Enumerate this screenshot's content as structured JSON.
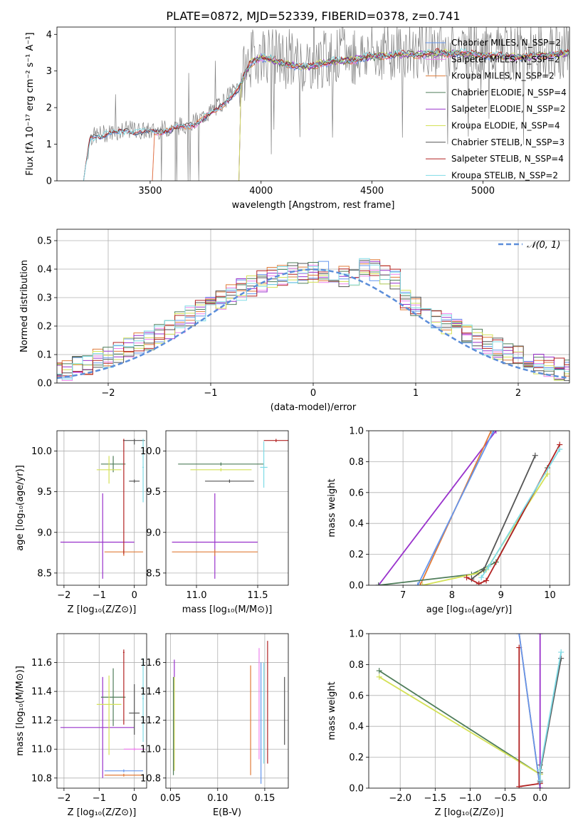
{
  "title": "PLATE=0872, MJD=52339, FIBERID=0378, z=0.741",
  "colors": {
    "chabrier_miles": "#6495ed",
    "salpeter_miles": "#ee82ee",
    "kroupa_miles": "#e07b39",
    "chabrier_elodie": "#4f7d5a",
    "salpeter_elodie": "#9932cc",
    "kroupa_elodie": "#d4e157",
    "chabrier_stelib": "#555555",
    "salpeter_stelib": "#b22222",
    "kroupa_stelib": "#7fdbe6",
    "data": "#808080",
    "normal": "#5b8dd9"
  },
  "chart_data": [
    {
      "id": "spectrum",
      "type": "line",
      "xlabel": "wavelength [Angstrom, rest frame]",
      "ylabel": "Flux [fλ 10⁻¹⁷ erg cm⁻² s⁻¹ A⁻¹]",
      "xlim": [
        3080,
        5390
      ],
      "ylim": [
        0,
        4.2
      ],
      "xticks": [
        3500,
        4000,
        4500,
        5000
      ],
      "yticks": [
        0,
        1,
        2,
        3,
        4
      ],
      "grid": false,
      "legend_position": "top-right",
      "continuum_x": [
        3200,
        3230,
        3300,
        3400,
        3500,
        3600,
        3700,
        3800,
        3850,
        3900,
        3950,
        4000,
        4100,
        4200,
        4300,
        4400,
        4500,
        4600,
        4700,
        4800,
        4900,
        5000,
        5100,
        5200,
        5300,
        5390
      ],
      "continuum_y": [
        0,
        1.2,
        1.3,
        1.4,
        1.35,
        1.45,
        1.6,
        2.0,
        2.3,
        2.6,
        3.3,
        3.5,
        3.3,
        3.2,
        3.35,
        3.4,
        3.5,
        3.55,
        3.55,
        3.6,
        3.6,
        3.55,
        3.5,
        3.5,
        3.55,
        3.6
      ],
      "series": [
        {
          "name": "Chabrier MILES, N_SSP=2",
          "color_key": "chabrier_miles",
          "start": 3210
        },
        {
          "name": "Salpeter MILES, N_SSP=2",
          "color_key": "salpeter_miles",
          "start": 3520
        },
        {
          "name": "Kroupa MILES, N_SSP=2",
          "color_key": "kroupa_miles",
          "start": 3520
        },
        {
          "name": "Chabrier ELODIE, N_SSP=4",
          "color_key": "chabrier_elodie",
          "start": 3910
        },
        {
          "name": "Salpeter ELODIE, N_SSP=2",
          "color_key": "salpeter_elodie",
          "start": 3910
        },
        {
          "name": "Kroupa ELODIE, N_SSP=4",
          "color_key": "kroupa_elodie",
          "start": 3910
        },
        {
          "name": "Chabrier STELIB, N_SSP=3",
          "color_key": "chabrier_stelib",
          "start": 3210
        },
        {
          "name": "Salpeter STELIB, N_SSP=4",
          "color_key": "salpeter_stelib",
          "start": 3210
        },
        {
          "name": "Kroupa STELIB, N_SSP=2",
          "color_key": "kroupa_stelib",
          "start": 3210
        }
      ]
    },
    {
      "id": "residuals",
      "type": "line",
      "xlabel": "(data-model)/error",
      "ylabel": "Normed distribution",
      "xlim": [
        -2.5,
        2.5
      ],
      "ylim": [
        0,
        0.54
      ],
      "xticks": [
        -2,
        -1,
        0,
        1,
        2
      ],
      "yticks": [
        0.0,
        0.1,
        0.2,
        0.3,
        0.4,
        0.5
      ],
      "grid": true,
      "legend_position": "top-right",
      "legend_label": "𝒩(0, 1)",
      "bin_width": 0.1
    },
    {
      "id": "age_vs_Z",
      "type": "scatter",
      "xlabel": "Z [log₁₀(Z/Z⊙)]",
      "ylabel": "age  [log₁₀(age/yr)]",
      "xlim": [
        -2.2,
        0.35
      ],
      "ylim": [
        8.35,
        10.25
      ],
      "xticks": [
        -2,
        -1,
        0
      ],
      "yticks": [
        8.5,
        9.0,
        9.5,
        10.0
      ],
      "grid": true,
      "points": [
        {
          "color_key": "salpeter_elodie",
          "x": -0.9,
          "xerr": [
            1.2,
            0.9
          ],
          "y": 8.88,
          "yerr": [
            0.45,
            0.6
          ]
        },
        {
          "color_key": "kroupa_miles",
          "x": -0.3,
          "xerr": [
            0.55,
            0.55
          ],
          "y": 8.76,
          "yerr": [
            0.05,
            0.03
          ]
        },
        {
          "color_key": "chabrier_elodie",
          "x": -0.6,
          "xerr": [
            0.35,
            0.35
          ],
          "y": 9.84,
          "yerr": [
            0.1,
            0.1
          ]
        },
        {
          "color_key": "kroupa_elodie",
          "x": -0.72,
          "xerr": [
            0.35,
            0.35
          ],
          "y": 9.77,
          "yerr": [
            0.17,
            0.17
          ]
        },
        {
          "color_key": "salpeter_stelib",
          "x": -0.3,
          "xerr": [
            0.02,
            0.02
          ],
          "y": 10.13,
          "yerr": [
            1.4,
            0.02
          ]
        },
        {
          "color_key": "chabrier_stelib",
          "x": 0.0,
          "xerr": [
            0.3,
            0.3
          ],
          "y": 10.13,
          "yerr": [
            0.05,
            0.02
          ]
        },
        {
          "color_key": "chabrier_stelib",
          "x": 0.0,
          "xerr": [
            0.15,
            0.15
          ],
          "y": 9.63,
          "yerr": [
            0.02,
            0.02
          ]
        },
        {
          "color_key": "kroupa_stelib",
          "x": 0.25,
          "xerr": [
            0.02,
            0.02
          ],
          "y": 9.8,
          "yerr": [
            0.43,
            0.35
          ]
        }
      ]
    },
    {
      "id": "age_vs_mass",
      "type": "scatter",
      "xlabel": "mass [log₁₀(M/M⊙)]",
      "ylabel": "",
      "xlim": [
        10.75,
        11.75
      ],
      "ylim": [
        8.35,
        10.25
      ],
      "xticks": [
        11.0,
        11.5
      ],
      "yticks": [
        8.5,
        9.0,
        9.5,
        10.0
      ],
      "grid": true,
      "points": [
        {
          "color_key": "salpeter_elodie",
          "x": 11.15,
          "xerr": [
            0.35,
            0.35
          ],
          "y": 8.88,
          "yerr": [
            0.45,
            0.6
          ]
        },
        {
          "color_key": "kroupa_miles",
          "x": 11.15,
          "xerr": [
            0.35,
            0.35
          ],
          "y": 8.76,
          "yerr": [
            0.05,
            0.03
          ]
        },
        {
          "color_key": "chabrier_elodie",
          "x": 11.2,
          "xerr": [
            0.35,
            0.35
          ],
          "y": 9.84,
          "yerr": [
            0.02,
            0.02
          ]
        },
        {
          "color_key": "kroupa_elodie",
          "x": 11.2,
          "xerr": [
            0.25,
            0.25
          ],
          "y": 9.77,
          "yerr": [
            0.02,
            0.02
          ]
        },
        {
          "color_key": "salpeter_stelib",
          "x": 11.65,
          "xerr": [
            0.1,
            0.1
          ],
          "y": 10.13,
          "yerr": [
            0.02,
            0.02
          ]
        },
        {
          "color_key": "chabrier_stelib",
          "x": 11.27,
          "xerr": [
            0.2,
            0.2
          ],
          "y": 9.63,
          "yerr": [
            0.02,
            0.02
          ]
        },
        {
          "color_key": "kroupa_stelib",
          "x": 11.55,
          "xerr": [
            0.03,
            0.03
          ],
          "y": 9.8,
          "yerr": [
            0.25,
            0.32
          ]
        }
      ]
    },
    {
      "id": "massweight_vs_age",
      "type": "line",
      "xlabel": "age  [log₁₀(age/yr)]",
      "ylabel": "mass weight",
      "xlim": [
        6.3,
        10.4
      ],
      "ylim": [
        0,
        1
      ],
      "xticks": [
        7,
        8,
        9,
        10
      ],
      "yticks": [
        0.0,
        0.2,
        0.4,
        0.6,
        0.8,
        1.0
      ],
      "grid": true,
      "series": [
        {
          "color_key": "salpeter_elodie",
          "x": [
            6.5,
            8.9
          ],
          "y": [
            0.0,
            1.0
          ]
        },
        {
          "color_key": "kroupa_miles",
          "x": [
            7.35,
            8.8
          ],
          "y": [
            0.0,
            1.0
          ]
        },
        {
          "color_key": "chabrier_miles",
          "x": [
            7.3,
            8.85
          ],
          "y": [
            0.0,
            1.0
          ]
        },
        {
          "color_key": "chabrier_elodie",
          "x": [
            6.5,
            8.4,
            8.9,
            9.95
          ],
          "y": [
            0.0,
            0.07,
            0.15,
            0.76
          ]
        },
        {
          "color_key": "kroupa_elodie",
          "x": [
            7.4,
            8.55,
            8.7,
            9.95
          ],
          "y": [
            0.0,
            0.08,
            0.1,
            0.72
          ]
        },
        {
          "color_key": "chabrier_stelib",
          "x": [
            8.4,
            8.65,
            9.7
          ],
          "y": [
            0.04,
            0.1,
            0.84
          ]
        },
        {
          "color_key": "salpeter_stelib",
          "x": [
            8.3,
            8.55,
            8.7,
            10.2
          ],
          "y": [
            0.05,
            0.01,
            0.03,
            0.91
          ]
        },
        {
          "color_key": "kroupa_stelib",
          "x": [
            8.6,
            8.75,
            10.2
          ],
          "y": [
            0.05,
            0.12,
            0.88
          ]
        }
      ]
    },
    {
      "id": "mass_vs_Z",
      "type": "scatter",
      "xlabel": "Z [log₁₀(Z/Z⊙)]",
      "ylabel": "mass [log₁₀(M/M⊙)]",
      "xlim": [
        -2.2,
        0.35
      ],
      "ylim": [
        10.73,
        11.8
      ],
      "xticks": [
        -2,
        -1,
        0
      ],
      "yticks": [
        10.8,
        11.0,
        11.2,
        11.4,
        11.6
      ],
      "grid": true,
      "points": [
        {
          "color_key": "salpeter_elodie",
          "x": -0.9,
          "xerr": [
            1.2,
            0.9
          ],
          "y": 11.15,
          "yerr": [
            0.35,
            0.35
          ]
        },
        {
          "color_key": "kroupa_miles",
          "x": -0.3,
          "xerr": [
            0.55,
            0.55
          ],
          "y": 10.82,
          "yerr": [
            0.01,
            0.01
          ]
        },
        {
          "color_key": "chabrier_miles",
          "x": -0.3,
          "xerr": [
            0.55,
            0.55
          ],
          "y": 10.85,
          "yerr": [
            0.01,
            0.01
          ]
        },
        {
          "color_key": "salpeter_miles",
          "x": 0.0,
          "xerr": [
            0.3,
            0.3
          ],
          "y": 11.0,
          "yerr": [
            0.01,
            0.01
          ]
        },
        {
          "color_key": "chabrier_elodie",
          "x": -0.6,
          "xerr": [
            0.35,
            0.35
          ],
          "y": 11.36,
          "yerr": [
            0.2,
            0.2
          ]
        },
        {
          "color_key": "kroupa_elodie",
          "x": -0.72,
          "xerr": [
            0.35,
            0.35
          ],
          "y": 11.31,
          "yerr": [
            0.35,
            0.2
          ]
        },
        {
          "color_key": "salpeter_stelib",
          "x": -0.3,
          "xerr": [
            0.02,
            0.02
          ],
          "y": 11.67,
          "yerr": [
            0.5,
            0.02
          ]
        },
        {
          "color_key": "chabrier_stelib",
          "x": 0.0,
          "xerr": [
            0.15,
            0.15
          ],
          "y": 11.25,
          "yerr": [
            0.15,
            0.2
          ]
        },
        {
          "color_key": "kroupa_stelib",
          "x": 0.25,
          "xerr": [
            0.02,
            0.02
          ],
          "y": 11.35,
          "yerr": [
            0.3,
            0.28
          ]
        }
      ]
    },
    {
      "id": "mass_vs_ebv",
      "type": "scatter",
      "xlabel": "E(B-V)",
      "ylabel": "",
      "xlim": [
        0.045,
        0.175
      ],
      "ylim": [
        10.73,
        11.8
      ],
      "xticks": [
        0.05,
        0.1,
        0.15
      ],
      "yticks": [
        10.8,
        11.0,
        11.2,
        11.4,
        11.6
      ],
      "grid": true,
      "points": [
        {
          "color_key": "salpeter_elodie",
          "x": 0.054,
          "xerr": [
            0,
            0
          ],
          "y": 11.2,
          "yerr": [
            0.35,
            0.42
          ]
        },
        {
          "color_key": "kroupa_elodie",
          "x": 0.054,
          "xerr": [
            0,
            0
          ],
          "y": 11.2,
          "yerr": [
            0.35,
            0.3
          ]
        },
        {
          "color_key": "chabrier_elodie",
          "x": 0.053,
          "xerr": [
            0,
            0
          ],
          "y": 11.2,
          "yerr": [
            0.38,
            0.3
          ]
        },
        {
          "color_key": "kroupa_miles",
          "x": 0.135,
          "xerr": [
            0,
            0
          ],
          "y": 11.2,
          "yerr": [
            0.38,
            0.38
          ]
        },
        {
          "color_key": "salpeter_miles",
          "x": 0.144,
          "xerr": [
            0,
            0
          ],
          "y": 11.3,
          "yerr": [
            0.37,
            0.4
          ]
        },
        {
          "color_key": "chabrier_miles",
          "x": 0.146,
          "xerr": [
            0,
            0
          ],
          "y": 11.2,
          "yerr": [
            0.44,
            0.4
          ]
        },
        {
          "color_key": "kroupa_stelib",
          "x": 0.149,
          "xerr": [
            0,
            0
          ],
          "y": 11.3,
          "yerr": [
            0.4,
            0.3
          ]
        },
        {
          "color_key": "salpeter_stelib",
          "x": 0.153,
          "xerr": [
            0,
            0
          ],
          "y": 11.3,
          "yerr": [
            0.4,
            0.45
          ]
        },
        {
          "color_key": "chabrier_stelib",
          "x": 0.171,
          "xerr": [
            0,
            0
          ],
          "y": 11.25,
          "yerr": [
            0.22,
            0.25
          ]
        }
      ]
    },
    {
      "id": "massweight_vs_Z",
      "type": "line",
      "xlabel": "Z [log₁₀(Z/Z⊙)]",
      "ylabel": "mass weight",
      "xlim": [
        -2.45,
        0.42
      ],
      "ylim": [
        0,
        1
      ],
      "xticks": [
        -2.0,
        -1.5,
        -1.0,
        -0.5,
        0.0
      ],
      "yticks": [
        0.0,
        0.2,
        0.4,
        0.6,
        0.8,
        1.0
      ],
      "grid": true,
      "series": [
        {
          "color_key": "chabrier_elodie",
          "x": [
            -2.3,
            0.0,
            0.0
          ],
          "y": [
            0.76,
            0.09,
            0.15
          ]
        },
        {
          "color_key": "kroupa_elodie",
          "x": [
            -2.3,
            0.0,
            0.0
          ],
          "y": [
            0.72,
            0.09,
            0.1
          ]
        },
        {
          "color_key": "salpeter_stelib",
          "x": [
            -0.3,
            -0.3,
            0.0,
            0.0
          ],
          "y": [
            0.91,
            0.01,
            0.03,
            0.05
          ]
        },
        {
          "color_key": "kroupa_miles",
          "x": [
            -0.3,
            0.0
          ],
          "y": [
            1.0,
            0.0
          ]
        },
        {
          "color_key": "chabrier_miles",
          "x": [
            -0.3,
            0.0
          ],
          "y": [
            1.0,
            0.0
          ]
        },
        {
          "color_key": "salpeter_elodie",
          "x": [
            0.0,
            0.0
          ],
          "y": [
            0.0,
            1.0
          ]
        },
        {
          "color_key": "chabrier_stelib",
          "x": [
            0.0,
            0.0,
            0.3
          ],
          "y": [
            0.04,
            0.1,
            0.84
          ]
        },
        {
          "color_key": "kroupa_stelib",
          "x": [
            0.0,
            0.0,
            0.3
          ],
          "y": [
            0.05,
            0.12,
            0.88
          ]
        }
      ]
    }
  ]
}
